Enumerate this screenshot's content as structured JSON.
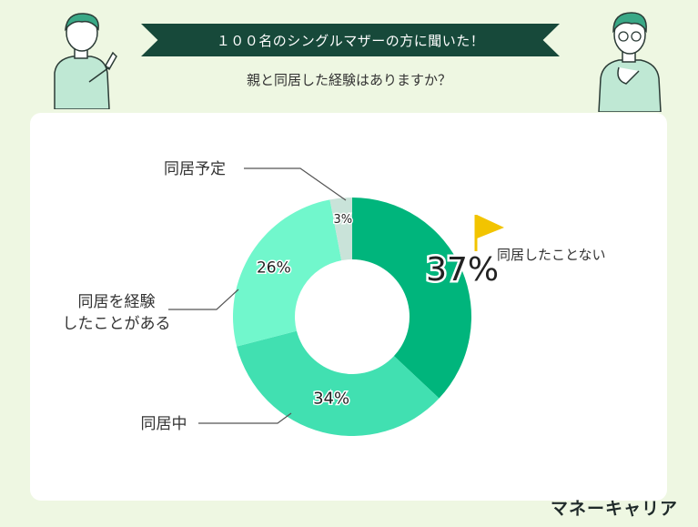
{
  "header": {
    "banner": "１００名のシングルマザーの方に聞いた！",
    "question": "親と同居した経験はありますか？"
  },
  "brand": "マネーキャリア",
  "chart_data": {
    "type": "pie",
    "categories": [
      "同居したことない",
      "同居中",
      "同居を経験したことがある",
      "同居予定"
    ],
    "values": [
      37,
      34,
      26,
      3
    ],
    "value_labels": [
      "37%",
      "34%",
      "26%",
      "3%"
    ],
    "colors": [
      "#00b57c",
      "#41e0b1",
      "#71f7cc",
      "#c9e3d9"
    ],
    "label_lines": [
      [
        "同居したことない"
      ],
      [
        "同居中"
      ],
      [
        "同居を経験",
        "したことがある"
      ],
      [
        "同居予定"
      ]
    ],
    "donut": true
  },
  "icons": {
    "flag": "flag-icon",
    "left_person": "person-pointing-icon",
    "right_person": "person-thinking-icon"
  }
}
